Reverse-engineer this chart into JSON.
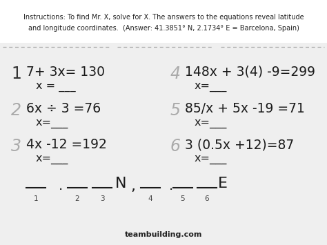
{
  "bg_color": "#efefef",
  "title_bg": "#ffffff",
  "title_text_line1": "Instructions: To find Mr. X, solve for X. The answers to the equations reveal latitude",
  "title_text_line2": "and longitude coordinates.  (Answer: 41.3851° N, 2.1734° E = Barcelona, Spain)",
  "problems_left": [
    {
      "num": "1",
      "eq": "7+ 3x= 130",
      "ans": "x = ___",
      "faded": false
    },
    {
      "num": "2",
      "eq": "6x ÷ 3 =76",
      "ans": "x=___",
      "faded": true
    },
    {
      "num": "3",
      "eq": "4x -12 =192",
      "ans": "x=___",
      "faded": true
    }
  ],
  "problems_right": [
    {
      "num": "4",
      "eq": "148x + 3(4) -9=299",
      "ans": "x=___",
      "faded": true
    },
    {
      "num": "5",
      "eq": "85/x + 5x -19 =71",
      "ans": "x=___",
      "faded": true
    },
    {
      "num": "6",
      "eq": "3 (0.5x +12)=87",
      "ans": "x=___",
      "faded": true
    }
  ],
  "footer": "teambuilding.com",
  "eq_color": "#1a1a1a",
  "faded_color": "#aaaaaa",
  "normal_color": "#333333"
}
